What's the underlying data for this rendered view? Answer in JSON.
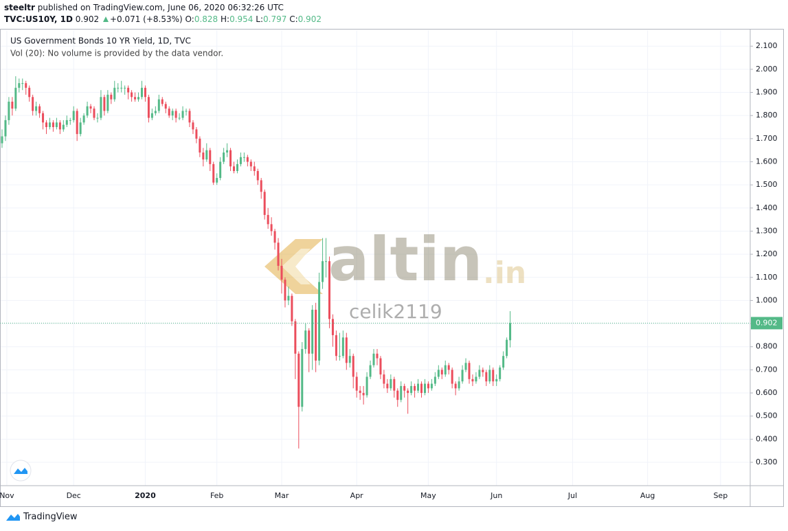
{
  "header": {
    "author": "steeltr",
    "published": "published on TradingView.com, June 06, 2020 06:32:26 UTC",
    "symbol": "TVC:US10Y, 1D",
    "change": "+0.071 (+8.53%)",
    "ohlc_labels": [
      "O:",
      "H:",
      "L:",
      "C:"
    ]
  },
  "watermark": {
    "brand": "altin",
    "tld": ".in",
    "user": "celik2119"
  },
  "footer": {
    "brand": "TradingView"
  },
  "chart_data": {
    "type": "candlestick",
    "title": "US Government Bonds 10 YR Yield, 1D, TVC",
    "subtitle": "Vol (20): No volume is provided by the data vendor.",
    "up_color": "#53b987",
    "down_color": "#eb4d5c",
    "grid": true,
    "xlim": [
      -0.6,
      219.4
    ],
    "xticks": [
      {
        "value": 1.4,
        "label": "Nov"
      },
      {
        "value": 21,
        "label": "Dec"
      },
      {
        "value": 42,
        "label": "2020"
      },
      {
        "value": 63,
        "label": "Feb"
      },
      {
        "value": 82,
        "label": "Mar"
      },
      {
        "value": 104,
        "label": "Apr"
      },
      {
        "value": 125,
        "label": "May"
      },
      {
        "value": 145,
        "label": "Jun"
      },
      {
        "value": 167.3,
        "label": "Jul"
      },
      {
        "value": 189.3,
        "label": "Aug"
      },
      {
        "value": 210.7,
        "label": "Sep"
      }
    ],
    "ylim": [
      0.199,
      2.169
    ],
    "yticks": [
      {
        "value": 0.3,
        "label": "0.300"
      },
      {
        "value": 0.4,
        "label": "0.400"
      },
      {
        "value": 0.5,
        "label": "0.500"
      },
      {
        "value": 0.6,
        "label": "0.600"
      },
      {
        "value": 0.7,
        "label": "0.700"
      },
      {
        "value": 0.8,
        "label": "0.800"
      },
      {
        "value": 0.9,
        "label": "0.900"
      },
      {
        "value": 1.0,
        "label": "1.000"
      },
      {
        "value": 1.1,
        "label": "1.100"
      },
      {
        "value": 1.2,
        "label": "1.200"
      },
      {
        "value": 1.3,
        "label": "1.300"
      },
      {
        "value": 1.4,
        "label": "1.400"
      },
      {
        "value": 1.5,
        "label": "1.500"
      },
      {
        "value": 1.6,
        "label": "1.600"
      },
      {
        "value": 1.7,
        "label": "1.700"
      },
      {
        "value": 1.8,
        "label": "1.800"
      },
      {
        "value": 1.9,
        "label": "1.900"
      },
      {
        "value": 2.0,
        "label": "2.000"
      },
      {
        "value": 2.1,
        "label": "2.100"
      }
    ],
    "ohlc": [
      [
        1.68,
        1.74,
        1.66,
        1.71
      ],
      [
        1.71,
        1.8,
        1.69,
        1.78
      ],
      [
        1.78,
        1.88,
        1.76,
        1.86
      ],
      [
        1.86,
        1.88,
        1.8,
        1.83
      ],
      [
        1.83,
        1.97,
        1.82,
        1.92
      ],
      [
        1.92,
        1.96,
        1.9,
        1.94
      ],
      [
        1.94,
        1.96,
        1.91,
        1.94
      ],
      [
        1.94,
        1.95,
        1.89,
        1.92
      ],
      [
        1.92,
        1.93,
        1.86,
        1.88
      ],
      [
        1.88,
        1.89,
        1.8,
        1.82
      ],
      [
        1.82,
        1.86,
        1.8,
        1.84
      ],
      [
        1.84,
        1.85,
        1.79,
        1.81
      ],
      [
        1.81,
        1.82,
        1.74,
        1.77
      ],
      [
        1.77,
        1.78,
        1.72,
        1.75
      ],
      [
        1.75,
        1.79,
        1.74,
        1.77
      ],
      [
        1.77,
        1.78,
        1.73,
        1.75
      ],
      [
        1.75,
        1.79,
        1.74,
        1.77
      ],
      [
        1.77,
        1.78,
        1.72,
        1.74
      ],
      [
        1.74,
        1.78,
        1.73,
        1.76
      ],
      [
        1.76,
        1.8,
        1.75,
        1.78
      ],
      [
        1.78,
        1.79,
        1.76,
        1.78
      ],
      [
        1.78,
        1.84,
        1.77,
        1.82
      ],
      [
        1.82,
        1.83,
        1.69,
        1.72
      ],
      [
        1.72,
        1.79,
        1.71,
        1.77
      ],
      [
        1.77,
        1.81,
        1.76,
        1.8
      ],
      [
        1.8,
        1.86,
        1.79,
        1.84
      ],
      [
        1.84,
        1.85,
        1.81,
        1.83
      ],
      [
        1.83,
        1.84,
        1.78,
        1.79
      ],
      [
        1.79,
        1.81,
        1.77,
        1.79
      ],
      [
        1.79,
        1.91,
        1.78,
        1.88
      ],
      [
        1.88,
        1.89,
        1.8,
        1.82
      ],
      [
        1.82,
        1.91,
        1.81,
        1.89
      ],
      [
        1.89,
        1.9,
        1.85,
        1.87
      ],
      [
        1.87,
        1.95,
        1.86,
        1.92
      ],
      [
        1.92,
        1.94,
        1.9,
        1.92
      ],
      [
        1.92,
        1.95,
        1.9,
        1.92
      ],
      [
        1.92,
        1.93,
        1.89,
        1.92
      ],
      [
        1.92,
        1.93,
        1.87,
        1.9
      ],
      [
        1.9,
        1.91,
        1.86,
        1.88
      ],
      [
        1.88,
        1.9,
        1.86,
        1.87
      ],
      [
        1.87,
        1.9,
        1.86,
        1.88
      ],
      [
        1.88,
        1.95,
        1.87,
        1.92
      ],
      [
        1.92,
        1.93,
        1.86,
        1.88
      ],
      [
        1.88,
        1.89,
        1.77,
        1.79
      ],
      [
        1.79,
        1.83,
        1.78,
        1.81
      ],
      [
        1.81,
        1.84,
        1.8,
        1.82
      ],
      [
        1.82,
        1.89,
        1.81,
        1.87
      ],
      [
        1.87,
        1.88,
        1.84,
        1.85
      ],
      [
        1.85,
        1.86,
        1.81,
        1.83
      ],
      [
        1.83,
        1.84,
        1.79,
        1.8
      ],
      [
        1.8,
        1.83,
        1.78,
        1.82
      ],
      [
        1.82,
        1.83,
        1.77,
        1.79
      ],
      [
        1.79,
        1.81,
        1.78,
        1.79
      ],
      [
        1.79,
        1.84,
        1.78,
        1.82
      ],
      [
        1.82,
        1.83,
        1.8,
        1.82
      ],
      [
        1.82,
        1.83,
        1.75,
        1.77
      ],
      [
        1.77,
        1.78,
        1.72,
        1.74
      ],
      [
        1.74,
        1.75,
        1.68,
        1.7
      ],
      [
        1.7,
        1.71,
        1.62,
        1.64
      ],
      [
        1.64,
        1.66,
        1.58,
        1.61
      ],
      [
        1.61,
        1.68,
        1.6,
        1.65
      ],
      [
        1.65,
        1.66,
        1.56,
        1.59
      ],
      [
        1.59,
        1.6,
        1.5,
        1.51
      ],
      [
        1.51,
        1.55,
        1.5,
        1.53
      ],
      [
        1.53,
        1.62,
        1.52,
        1.6
      ],
      [
        1.6,
        1.66,
        1.59,
        1.64
      ],
      [
        1.64,
        1.68,
        1.62,
        1.65
      ],
      [
        1.65,
        1.66,
        1.56,
        1.58
      ],
      [
        1.58,
        1.6,
        1.55,
        1.56
      ],
      [
        1.56,
        1.61,
        1.55,
        1.59
      ],
      [
        1.59,
        1.64,
        1.58,
        1.62
      ],
      [
        1.62,
        1.64,
        1.6,
        1.62
      ],
      [
        1.62,
        1.63,
        1.58,
        1.6
      ],
      [
        1.6,
        1.61,
        1.56,
        1.58
      ],
      [
        1.58,
        1.6,
        1.54,
        1.56
      ],
      [
        1.56,
        1.57,
        1.5,
        1.52
      ],
      [
        1.52,
        1.53,
        1.44,
        1.47
      ],
      [
        1.47,
        1.48,
        1.35,
        1.37
      ],
      [
        1.37,
        1.4,
        1.31,
        1.33
      ],
      [
        1.33,
        1.36,
        1.28,
        1.3
      ],
      [
        1.3,
        1.31,
        1.22,
        1.25
      ],
      [
        1.25,
        1.27,
        1.13,
        1.15
      ],
      [
        1.15,
        1.18,
        1.03,
        1.09
      ],
      [
        1.09,
        1.1,
        0.97,
        1.0
      ],
      [
        1.0,
        1.06,
        0.98,
        1.02
      ],
      [
        1.02,
        1.03,
        0.89,
        0.91
      ],
      [
        0.91,
        0.92,
        0.66,
        0.77
      ],
      [
        0.77,
        0.78,
        0.36,
        0.54
      ],
      [
        0.54,
        0.82,
        0.52,
        0.79
      ],
      [
        0.79,
        0.9,
        0.77,
        0.87
      ],
      [
        0.87,
        0.88,
        0.69,
        0.77
      ],
      [
        0.77,
        0.98,
        0.7,
        0.96
      ],
      [
        0.96,
        0.99,
        0.69,
        0.74
      ],
      [
        0.74,
        1.12,
        0.72,
        1.08
      ],
      [
        1.08,
        1.27,
        1.05,
        1.17
      ],
      [
        1.17,
        1.27,
        1.1,
        1.17
      ],
      [
        1.17,
        1.19,
        0.88,
        0.92
      ],
      [
        0.92,
        0.94,
        0.8,
        0.85
      ],
      [
        0.85,
        0.87,
        0.74,
        0.76
      ],
      [
        0.76,
        0.86,
        0.74,
        0.76
      ],
      [
        0.76,
        0.87,
        0.75,
        0.84
      ],
      [
        0.84,
        0.86,
        0.7,
        0.73
      ],
      [
        0.73,
        0.79,
        0.71,
        0.76
      ],
      [
        0.76,
        0.77,
        0.62,
        0.67
      ],
      [
        0.67,
        0.69,
        0.58,
        0.61
      ],
      [
        0.61,
        0.63,
        0.57,
        0.6
      ],
      [
        0.6,
        0.63,
        0.55,
        0.59
      ],
      [
        0.59,
        0.69,
        0.58,
        0.67
      ],
      [
        0.67,
        0.74,
        0.66,
        0.72
      ],
      [
        0.72,
        0.79,
        0.71,
        0.77
      ],
      [
        0.77,
        0.79,
        0.72,
        0.75
      ],
      [
        0.75,
        0.76,
        0.66,
        0.68
      ],
      [
        0.68,
        0.7,
        0.62,
        0.64
      ],
      [
        0.64,
        0.66,
        0.6,
        0.62
      ],
      [
        0.62,
        0.68,
        0.61,
        0.66
      ],
      [
        0.66,
        0.67,
        0.58,
        0.61
      ],
      [
        0.61,
        0.62,
        0.54,
        0.57
      ],
      [
        0.57,
        0.65,
        0.56,
        0.63
      ],
      [
        0.63,
        0.64,
        0.58,
        0.61
      ],
      [
        0.61,
        0.62,
        0.51,
        0.6
      ],
      [
        0.6,
        0.65,
        0.59,
        0.63
      ],
      [
        0.63,
        0.64,
        0.58,
        0.61
      ],
      [
        0.61,
        0.66,
        0.6,
        0.64
      ],
      [
        0.64,
        0.65,
        0.58,
        0.6
      ],
      [
        0.6,
        0.66,
        0.59,
        0.64
      ],
      [
        0.64,
        0.65,
        0.6,
        0.62
      ],
      [
        0.62,
        0.66,
        0.61,
        0.64
      ],
      [
        0.64,
        0.69,
        0.63,
        0.67
      ],
      [
        0.67,
        0.72,
        0.66,
        0.7
      ],
      [
        0.7,
        0.71,
        0.66,
        0.68
      ],
      [
        0.68,
        0.74,
        0.67,
        0.72
      ],
      [
        0.72,
        0.73,
        0.68,
        0.7
      ],
      [
        0.7,
        0.71,
        0.62,
        0.64
      ],
      [
        0.64,
        0.65,
        0.59,
        0.62
      ],
      [
        0.62,
        0.67,
        0.61,
        0.65
      ],
      [
        0.65,
        0.72,
        0.64,
        0.7
      ],
      [
        0.7,
        0.75,
        0.69,
        0.73
      ],
      [
        0.73,
        0.74,
        0.64,
        0.66
      ],
      [
        0.66,
        0.68,
        0.63,
        0.65
      ],
      [
        0.65,
        0.69,
        0.64,
        0.67
      ],
      [
        0.67,
        0.72,
        0.66,
        0.7
      ],
      [
        0.7,
        0.71,
        0.67,
        0.69
      ],
      [
        0.69,
        0.7,
        0.63,
        0.65
      ],
      [
        0.65,
        0.72,
        0.64,
        0.7
      ],
      [
        0.7,
        0.71,
        0.63,
        0.65
      ],
      [
        0.65,
        0.68,
        0.63,
        0.66
      ],
      [
        0.66,
        0.72,
        0.65,
        0.71
      ],
      [
        0.71,
        0.78,
        0.7,
        0.76
      ],
      [
        0.76,
        0.84,
        0.75,
        0.83
      ],
      [
        0.828,
        0.954,
        0.797,
        0.902
      ]
    ]
  }
}
